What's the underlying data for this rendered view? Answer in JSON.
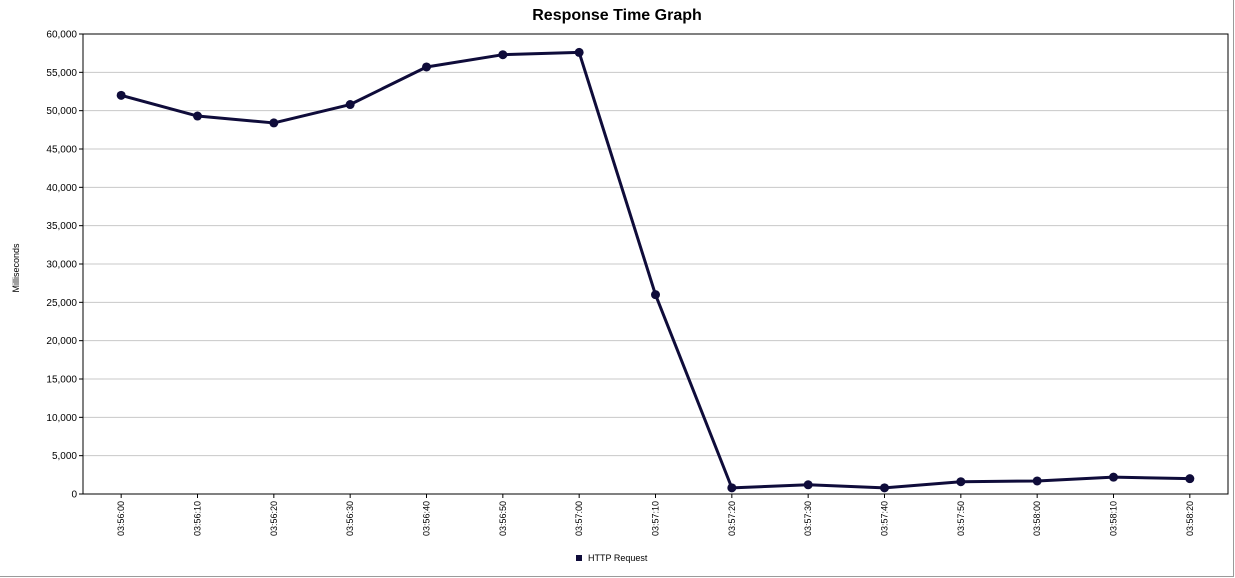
{
  "chart_data": {
    "type": "line",
    "title": "Response Time Graph",
    "xlabel": "",
    "ylabel": "Milliseconds",
    "ylim": [
      0,
      60000
    ],
    "yticks": [
      0,
      5000,
      10000,
      15000,
      20000,
      25000,
      30000,
      35000,
      40000,
      45000,
      50000,
      55000,
      60000
    ],
    "ytick_labels": [
      "0",
      "5,000",
      "10,000",
      "15,000",
      "20,000",
      "25,000",
      "30,000",
      "35,000",
      "40,000",
      "45,000",
      "50,000",
      "55,000",
      "60,000"
    ],
    "categories": [
      "03:56:00",
      "03:56:10",
      "03:56:20",
      "03:56:30",
      "03:56:40",
      "03:56:50",
      "03:57:00",
      "03:57:10",
      "03:57:20",
      "03:57:30",
      "03:57:40",
      "03:57:50",
      "03:58:00",
      "03:58:10",
      "03:58:20"
    ],
    "series": [
      {
        "name": "HTTP Request",
        "color": "#0f0c3a",
        "values": [
          52000,
          49300,
          48400,
          50800,
          55700,
          57300,
          57600,
          26000,
          800,
          1200,
          800,
          1600,
          1700,
          2200,
          2000
        ]
      }
    ],
    "grid": true,
    "legend_position": "bottom"
  }
}
